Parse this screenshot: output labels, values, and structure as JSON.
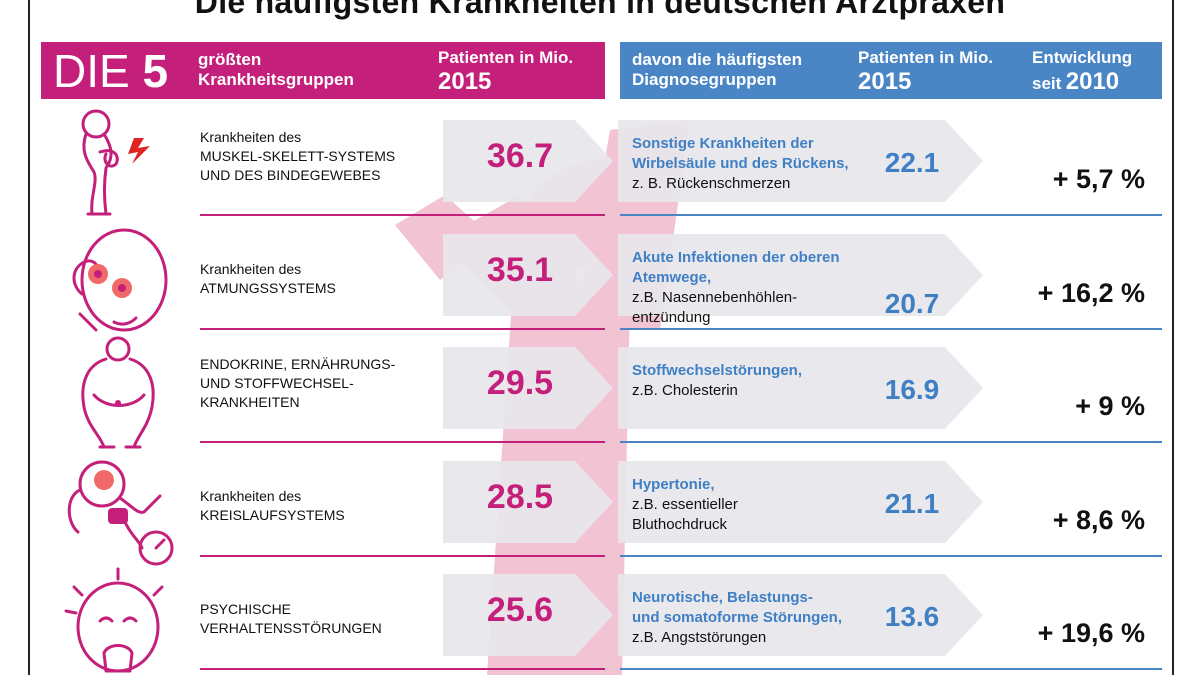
{
  "title": "Die häufigsten Krankheiten in deutschen Arztpraxen",
  "header_left": {
    "die": "DIE",
    "five": "5",
    "label_line1": "größten",
    "label_line2": "Krankheitsgruppen",
    "col_line1": "Patienten in Mio.",
    "col_year": "2015"
  },
  "header_right": {
    "label_line1": "davon die häufigsten",
    "label_line2": "Diagnosegruppen",
    "col_line1": "Patienten in Mio.",
    "col_year": "2015",
    "trend_line1": "Entwicklung",
    "trend_prefix": "seit",
    "trend_year": "2010"
  },
  "colors": {
    "pink": "#c41f7a",
    "blue": "#4a86c5",
    "figure": "#f2c3d3",
    "arrow": "#e7e7ec"
  },
  "icons": [
    "back-pain-icon",
    "sinus-pain-icon",
    "obesity-icon",
    "hypertension-icon",
    "anxiety-icon"
  ],
  "chart_data": {
    "type": "table",
    "rows": [
      {
        "group": [
          "Krankheiten des",
          "MUSKEL-SKELETT-SYSTEMS",
          "UND DES BINDEGEWEBES"
        ],
        "patients_2015": "36.7",
        "diagnosis": [
          "Sonstige Krankheiten der",
          "Wirbelsäule und des Rückens,"
        ],
        "example": [
          "z. B. Rückenschmerzen"
        ],
        "diagnosis_patients_2015": "22.1",
        "change_since_2010": "+ 5,7 %"
      },
      {
        "group": [
          "Krankheiten des",
          "ATMUNGSSYSTEMS"
        ],
        "patients_2015": "35.1",
        "diagnosis": [
          "Akute Infektionen der oberen Atemwege,"
        ],
        "example": [
          "z.B. Nasennebenhöhlen-",
          "entzündung"
        ],
        "diagnosis_patients_2015": "20.7",
        "change_since_2010": "+ 16,2 %"
      },
      {
        "group": [
          "ENDOKRINE, ERNÄHRUNGS-",
          "UND STOFFWECHSEL-",
          "KRANKHEITEN"
        ],
        "patients_2015": "29.5",
        "diagnosis": [
          "Stoffwechselstörungen,"
        ],
        "example": [
          "z.B. Cholesterin"
        ],
        "diagnosis_patients_2015": "16.9",
        "change_since_2010": "+ 9 %"
      },
      {
        "group": [
          "Krankheiten des",
          "KREISLAUFSYSTEMS"
        ],
        "patients_2015": "28.5",
        "diagnosis": [
          "Hypertonie,"
        ],
        "example": [
          "z.B. essentieller",
          "Bluthochdruck"
        ],
        "diagnosis_patients_2015": "21.1",
        "change_since_2010": "+ 8,6 %"
      },
      {
        "group": [
          "PSYCHISCHE",
          "VERHALTENSSTÖRUNGEN"
        ],
        "patients_2015": "25.6",
        "diagnosis": [
          "Neurotische, Belastungs-",
          "und somatoforme Störungen,"
        ],
        "example": [
          "z.B. Angststörungen"
        ],
        "diagnosis_patients_2015": "13.6",
        "change_since_2010": "+ 19,6 %"
      }
    ]
  }
}
